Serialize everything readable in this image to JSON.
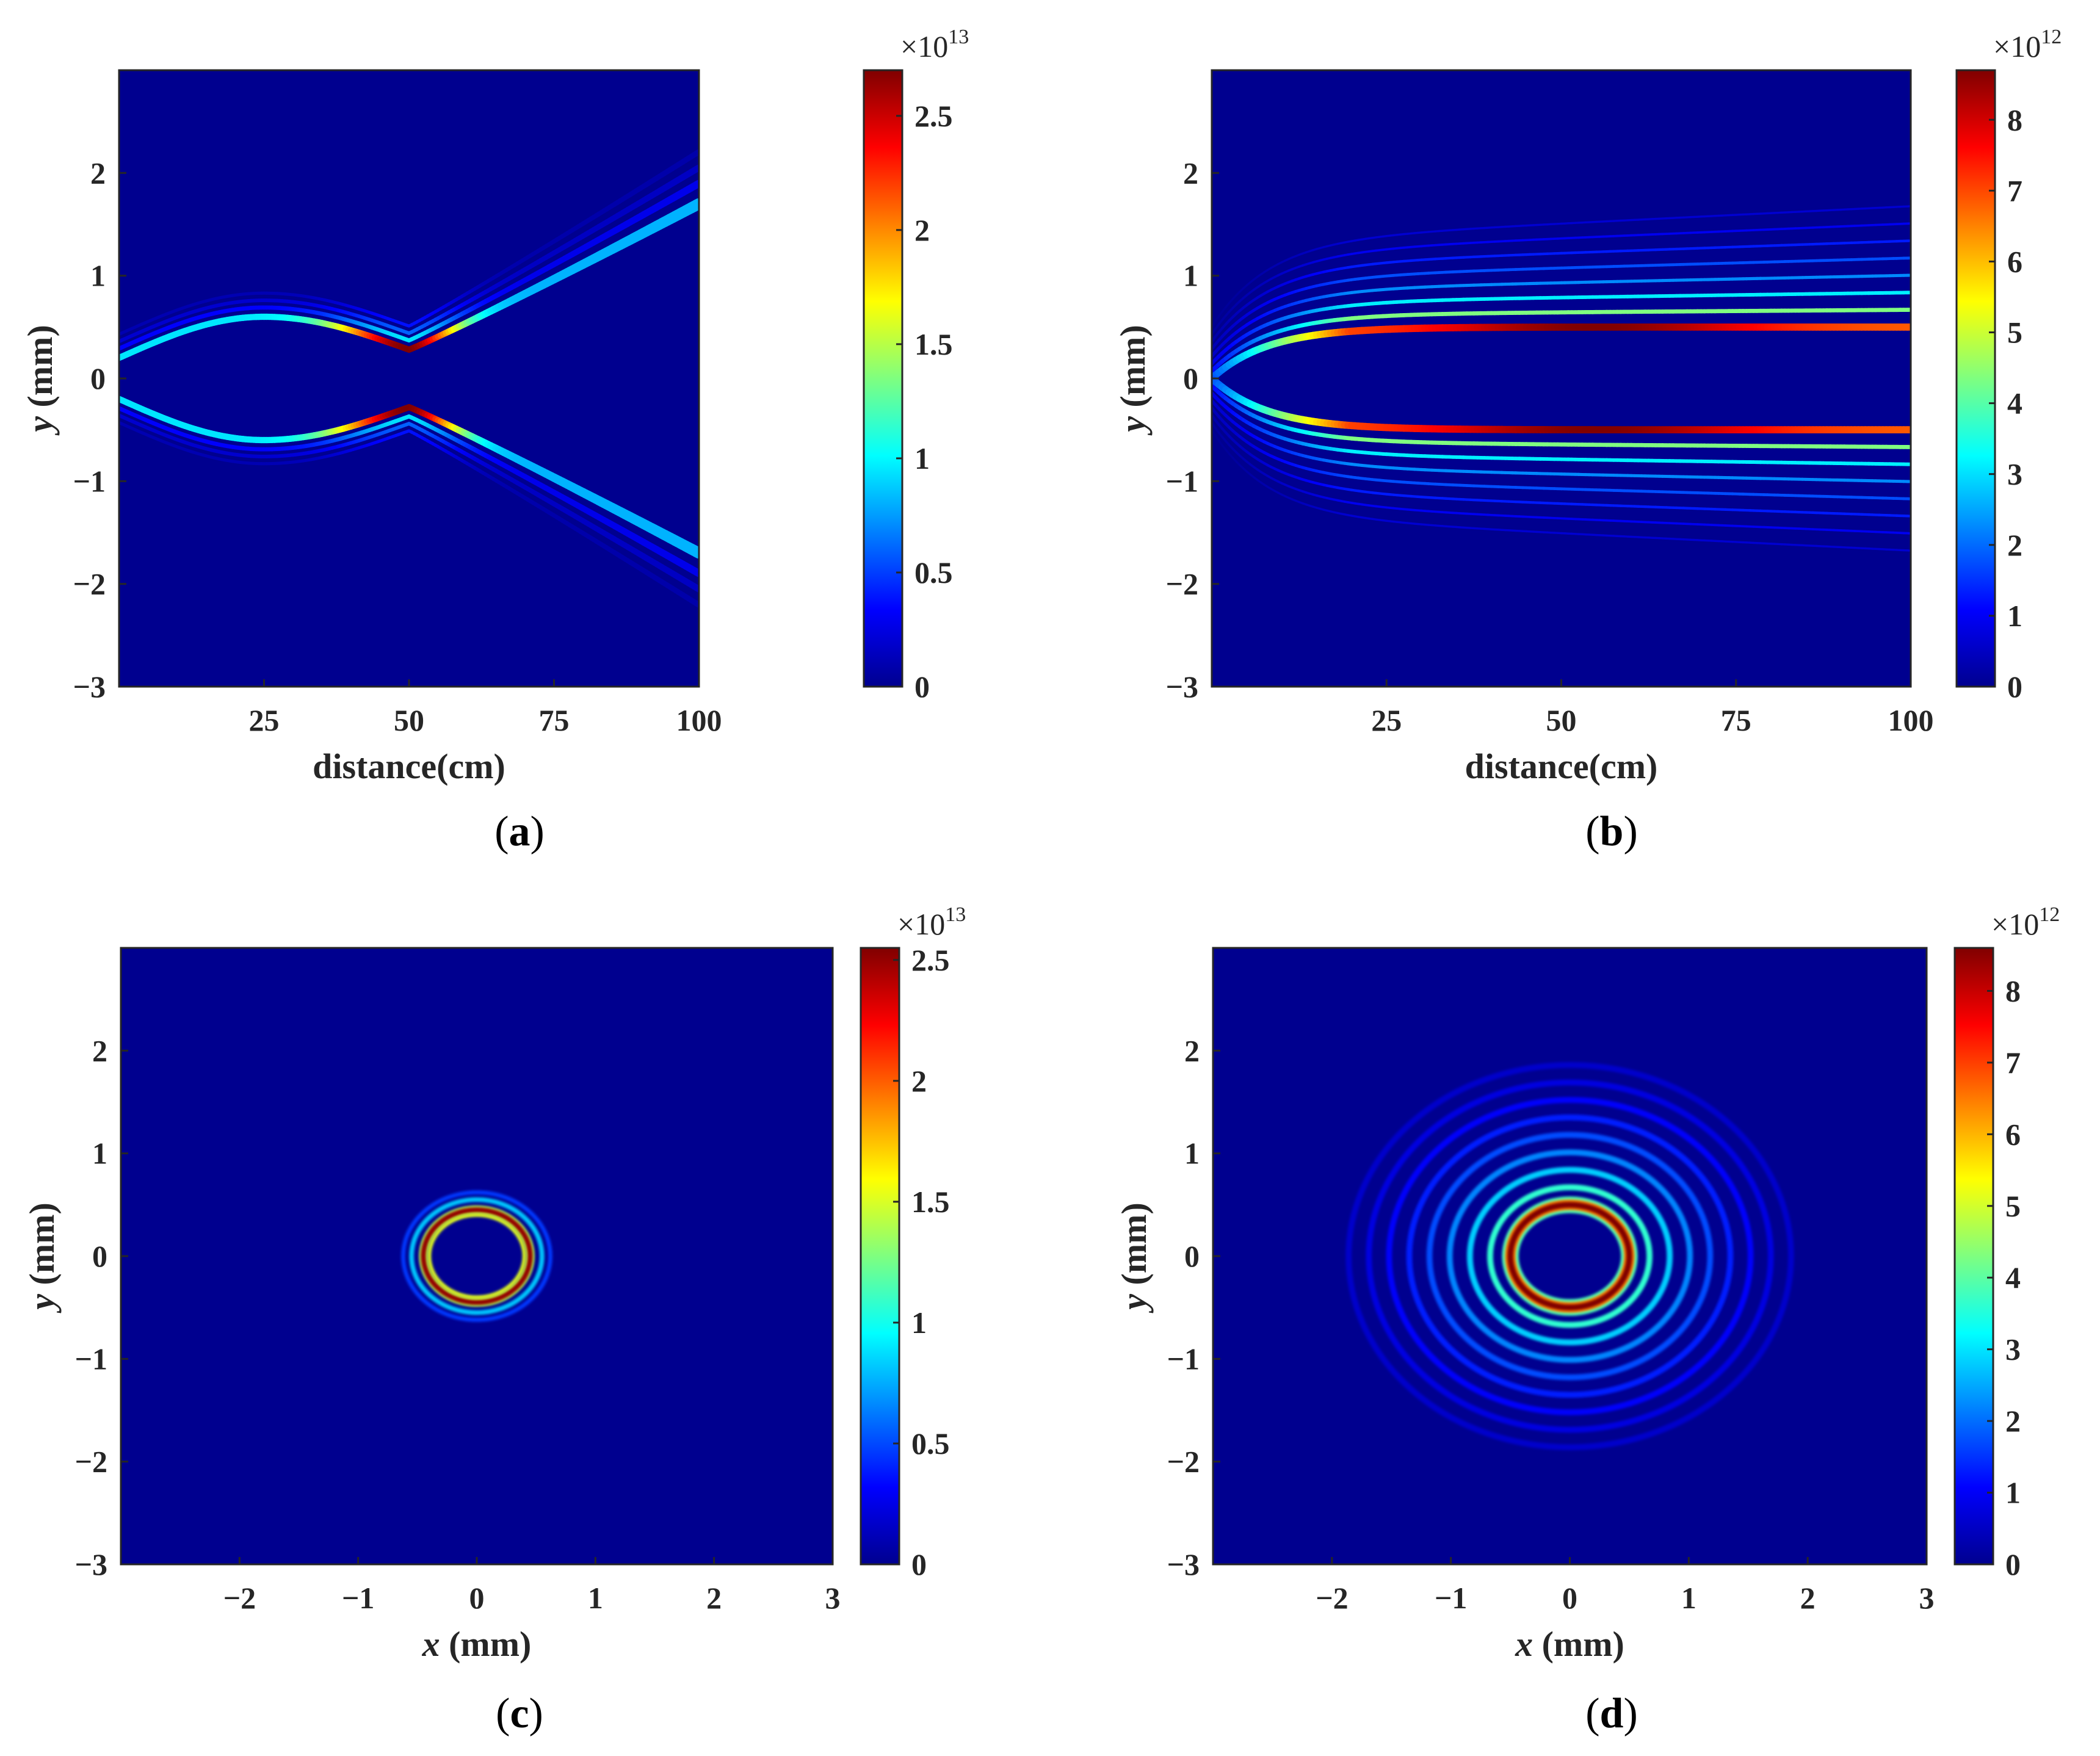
{
  "chart_data": [
    {
      "type": "heatmap",
      "panel": "a",
      "caption_letter": "a",
      "xlabel": "distance(cm)",
      "ylabel_var": "y",
      "ylabel_unit": " (mm)",
      "xlim": [
        0,
        100
      ],
      "ylim": [
        -3,
        3
      ],
      "xticks": [
        25,
        50,
        75,
        100
      ],
      "yticks": [
        -3,
        -2,
        -1,
        0,
        1,
        2
      ],
      "colorbar": {
        "min": 0,
        "max": 2.7,
        "ticks": [
          "0",
          "0.5",
          "1",
          "1.5",
          "2",
          "2.5"
        ],
        "tick_values": [
          0,
          0.5,
          1,
          1.5,
          2,
          2.5
        ],
        "multiplier_base": "×10",
        "multiplier_exp": "13"
      },
      "pattern": "focusing-beam",
      "features": {
        "focus_distance_cm": 50,
        "radius_at_start_mm": 0.2,
        "max_radius_mm": 0.6,
        "max_radius_distance_cm": 25,
        "radius_at_focus_mm": 0.28,
        "radius_at_end_mm": 1.7
      }
    },
    {
      "type": "heatmap",
      "panel": "b",
      "caption_letter": "b",
      "xlabel": "distance(cm)",
      "ylabel_var": "y",
      "ylabel_unit": " (mm)",
      "xlim": [
        0,
        100
      ],
      "ylim": [
        -3,
        3
      ],
      "xticks": [
        25,
        50,
        75,
        100
      ],
      "yticks": [
        -3,
        -2,
        -1,
        0,
        1,
        2
      ],
      "colorbar": {
        "min": 0,
        "max": 8.7,
        "ticks": [
          "0",
          "1",
          "2",
          "3",
          "4",
          "5",
          "6",
          "7",
          "8"
        ],
        "tick_values": [
          0,
          1,
          2,
          3,
          4,
          5,
          6,
          7,
          8
        ],
        "multiplier_base": "×10",
        "multiplier_exp": "12"
      },
      "pattern": "bessel-beam",
      "features": {
        "main_lobe_radius_mm": 0.5,
        "sidelobe_spacing_mm": 0.12
      }
    },
    {
      "type": "heatmap",
      "panel": "c",
      "caption_letter": "c",
      "xlabel_var": "x",
      "xlabel_unit": " (mm)",
      "ylabel_var": "y",
      "ylabel_unit": " (mm)",
      "xlim": [
        -3,
        3
      ],
      "ylim": [
        -3,
        3
      ],
      "xticks": [
        -2,
        -1,
        0,
        1,
        2,
        3
      ],
      "yticks": [
        -3,
        -2,
        -1,
        0,
        1,
        2
      ],
      "colorbar": {
        "min": 0,
        "max": 2.55,
        "ticks": [
          "0",
          "0.5",
          "1",
          "1.5",
          "2",
          "2.5"
        ],
        "tick_values": [
          0,
          0.5,
          1,
          1.5,
          2,
          2.5
        ],
        "multiplier_base": "×10",
        "multiplier_exp": "13"
      },
      "pattern": "ring",
      "features": {
        "ring_radius_mm": 0.45,
        "outer_rings_mm": [
          0.55,
          0.62
        ]
      }
    },
    {
      "type": "heatmap",
      "panel": "d",
      "caption_letter": "d",
      "xlabel_var": "x",
      "xlabel_unit": " (mm)",
      "ylabel_var": "y",
      "ylabel_unit": " (mm)",
      "xlim": [
        -3,
        3
      ],
      "ylim": [
        -3,
        3
      ],
      "xticks": [
        -2,
        -1,
        0,
        1,
        2,
        3
      ],
      "yticks": [
        -3,
        -2,
        -1,
        0,
        1,
        2
      ],
      "colorbar": {
        "min": 0,
        "max": 8.6,
        "ticks": [
          "0",
          "1",
          "2",
          "3",
          "4",
          "5",
          "6",
          "7",
          "8"
        ],
        "tick_values": [
          0,
          1,
          2,
          3,
          4,
          5,
          6,
          7,
          8
        ],
        "multiplier_base": "×10",
        "multiplier_exp": "12"
      },
      "pattern": "ring-multi",
      "features": {
        "ring_radius_mm": 0.5,
        "outer_ring_spacing_mm": 0.17,
        "outer_ring_count": 8
      }
    }
  ],
  "colors": {
    "background_low": "#00008f",
    "colormap": "jet"
  }
}
